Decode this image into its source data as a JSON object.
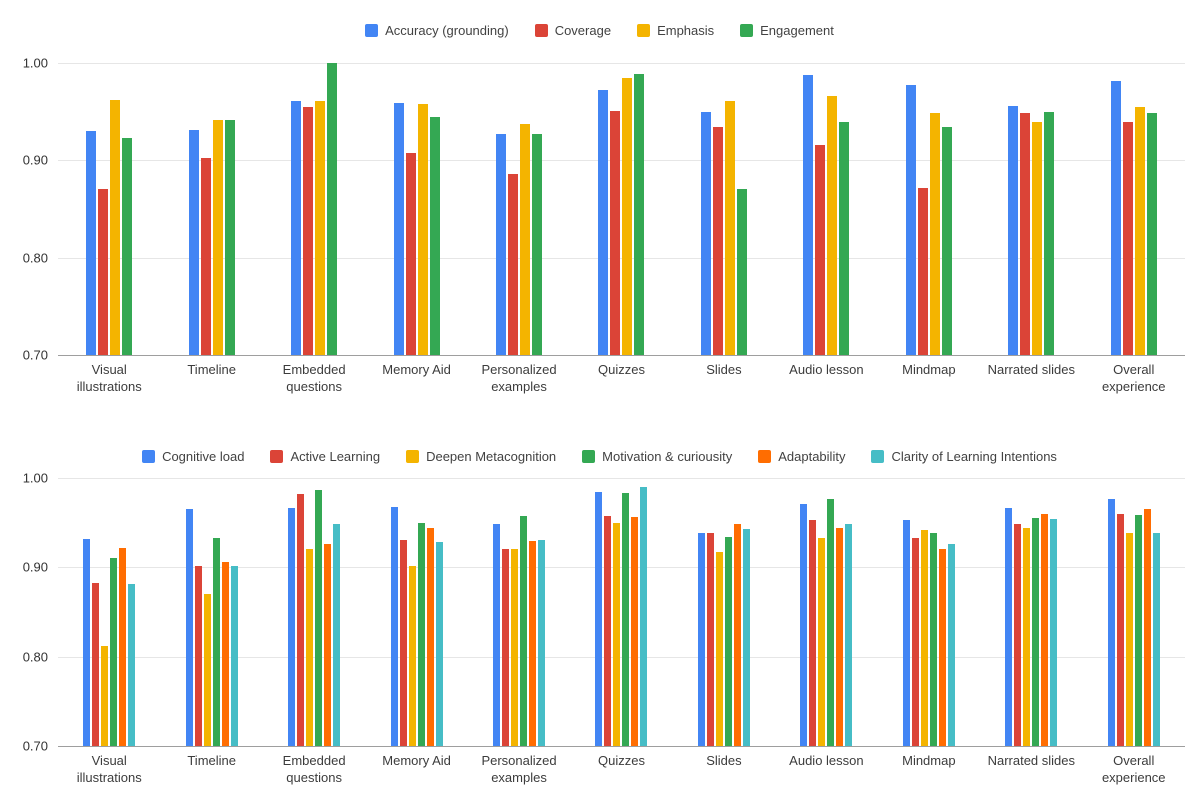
{
  "page": {
    "background": "#ffffff"
  },
  "chart_data": [
    {
      "type": "bar",
      "title": "",
      "xlabel": "",
      "ylabel": "",
      "ylim": [
        0.7,
        1.0
      ],
      "yticks": [
        1.0,
        0.9,
        0.8,
        0.7
      ],
      "grid": true,
      "legend_position": "top",
      "categories": [
        "Visual illustrations",
        "Timeline",
        "Embedded questions",
        "Memory Aid",
        "Personalized examples",
        "Quizzes",
        "Slides",
        "Audio lesson",
        "Mindmap",
        "Narrated slides",
        "Overall experience"
      ],
      "series": [
        {
          "name": "Accuracy (grounding)",
          "color": "#4285F4",
          "values": [
            0.93,
            0.931,
            0.961,
            0.959,
            0.927,
            0.972,
            0.95,
            0.988,
            0.977,
            0.956,
            0.982
          ]
        },
        {
          "name": "Coverage",
          "color": "#DB4437",
          "values": [
            0.871,
            0.902,
            0.955,
            0.908,
            0.886,
            0.951,
            0.934,
            0.916,
            0.872,
            0.949,
            0.939
          ]
        },
        {
          "name": "Emphasis",
          "color": "#F4B400",
          "values": [
            0.962,
            0.941,
            0.961,
            0.958,
            0.937,
            0.985,
            0.961,
            0.966,
            0.949,
            0.939,
            0.955
          ]
        },
        {
          "name": "Engagement",
          "color": "#34A853",
          "values": [
            0.923,
            0.941,
            1.0,
            0.945,
            0.927,
            0.989,
            0.871,
            0.939,
            0.934,
            0.95,
            0.949
          ]
        }
      ]
    },
    {
      "type": "bar",
      "title": "",
      "xlabel": "",
      "ylabel": "",
      "ylim": [
        0.7,
        1.0
      ],
      "yticks": [
        1.0,
        0.9,
        0.8,
        0.7
      ],
      "grid": true,
      "legend_position": "top",
      "categories": [
        "Visual illustrations",
        "Timeline",
        "Embedded questions",
        "Memory Aid",
        "Personalized examples",
        "Quizzes",
        "Slides",
        "Audio lesson",
        "Mindmap",
        "Narrated slides",
        "Overall experience"
      ],
      "series": [
        {
          "name": "Cognitive load",
          "color": "#4285F4",
          "values": [
            0.932,
            0.965,
            0.966,
            0.967,
            0.948,
            0.984,
            0.938,
            0.971,
            0.953,
            0.966,
            0.976
          ]
        },
        {
          "name": "Active Learning",
          "color": "#DB4437",
          "values": [
            0.882,
            0.901,
            0.982,
            0.931,
            0.92,
            0.958,
            0.938,
            0.953,
            0.933,
            0.949,
            0.96
          ]
        },
        {
          "name": "Deepen Metacognition",
          "color": "#F4B400",
          "values": [
            0.812,
            0.87,
            0.92,
            0.901,
            0.921,
            0.95,
            0.917,
            0.933,
            0.942,
            0.944,
            0.938
          ]
        },
        {
          "name": "Motivation & curiousity",
          "color": "#34A853",
          "values": [
            0.911,
            0.933,
            0.987,
            0.95,
            0.958,
            0.983,
            0.934,
            0.976,
            0.938,
            0.955,
            0.959
          ]
        },
        {
          "name": "Adaptability",
          "color": "#FF6D01",
          "values": [
            0.922,
            0.906,
            0.926,
            0.944,
            0.93,
            0.956,
            0.949,
            0.944,
            0.92,
            0.96,
            0.965
          ]
        },
        {
          "name": "Clarity of Learning Intentions",
          "color": "#46BDC6",
          "values": [
            0.881,
            0.901,
            0.948,
            0.928,
            0.931,
            0.99,
            0.943,
            0.949,
            0.926,
            0.954,
            0.938
          ]
        }
      ]
    }
  ]
}
